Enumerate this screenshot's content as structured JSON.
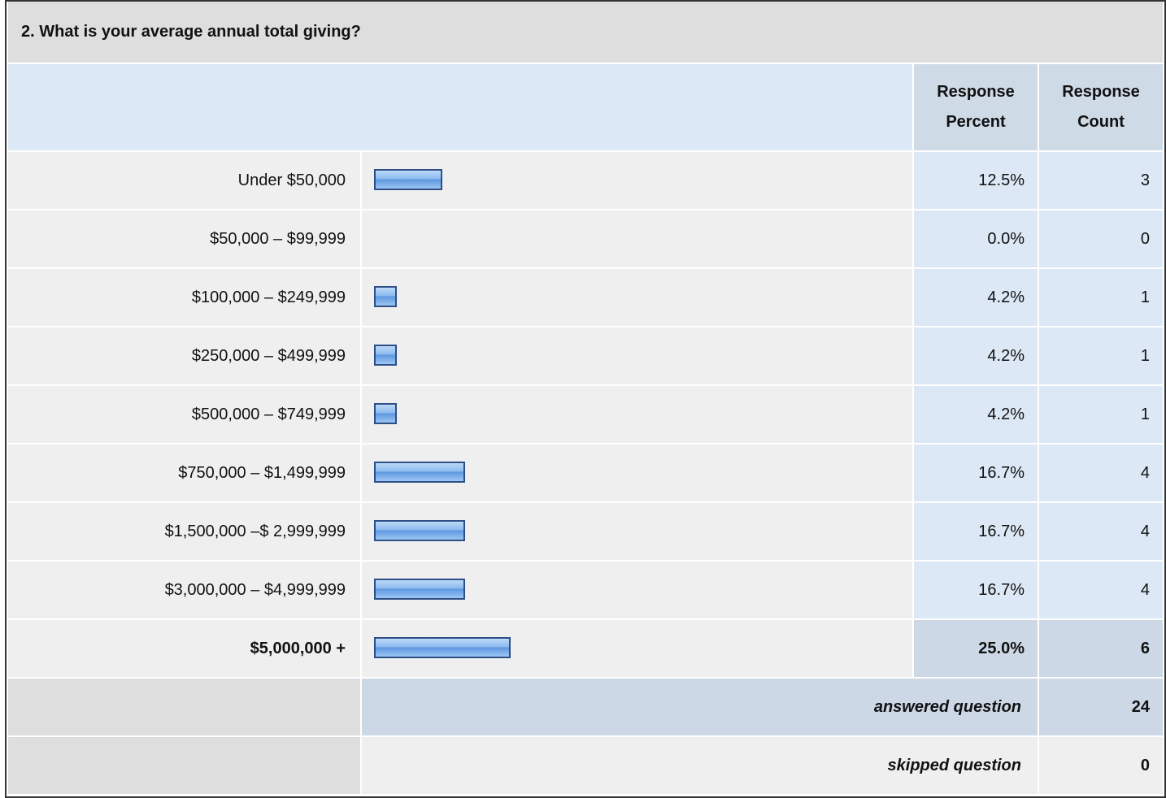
{
  "question": "2. What is your average annual total giving?",
  "headers": {
    "percent": "Response Percent",
    "count": "Response Count"
  },
  "rows": [
    {
      "label": "Under $50,000",
      "percent": 12.5,
      "percent_label": "12.5%",
      "count": 3
    },
    {
      "label": "$50,000 – $99,999",
      "percent": 0.0,
      "percent_label": "0.0%",
      "count": 0
    },
    {
      "label": "$100,000 – $249,999",
      "percent": 4.2,
      "percent_label": "4.2%",
      "count": 1
    },
    {
      "label": "$250,000 – $499,999",
      "percent": 4.2,
      "percent_label": "4.2%",
      "count": 1
    },
    {
      "label": "$500,000 – $749,999",
      "percent": 4.2,
      "percent_label": "4.2%",
      "count": 1
    },
    {
      "label": "$750,000 – $1,499,999",
      "percent": 16.7,
      "percent_label": "16.7%",
      "count": 4
    },
    {
      "label": "$1,500,000 –$ 2,999,999",
      "percent": 16.7,
      "percent_label": "16.7%",
      "count": 4
    },
    {
      "label": "$3,000,000 – $4,999,999",
      "percent": 16.7,
      "percent_label": "16.7%",
      "count": 4
    },
    {
      "label": "$5,000,000 +",
      "percent": 25.0,
      "percent_label": "25.0%",
      "count": 6
    }
  ],
  "answered": {
    "label": "answered question",
    "count": 24
  },
  "skipped": {
    "label": "skipped question",
    "count": 0
  }
}
